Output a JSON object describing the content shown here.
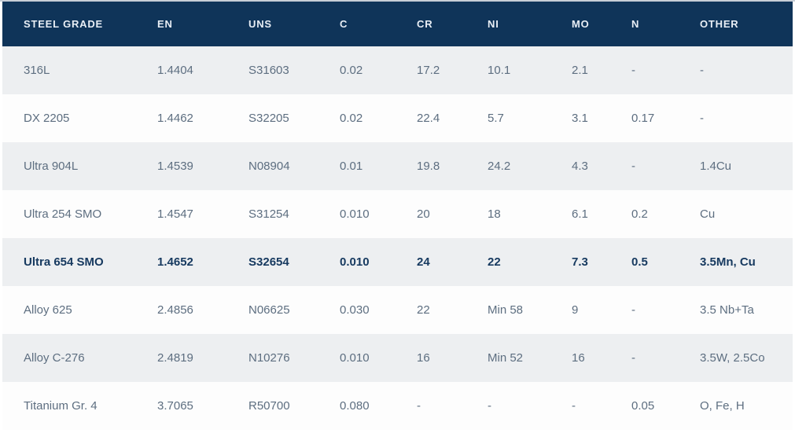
{
  "table": {
    "columns": [
      "STEEL GRADE",
      "EN",
      "UNS",
      "C",
      "CR",
      "NI",
      "MO",
      "N",
      "OTHER"
    ],
    "rows": [
      {
        "cells": [
          "316L",
          "1.4404",
          "S31603",
          "0.02",
          "17.2",
          "10.1",
          "2.1",
          "-",
          "-"
        ],
        "emphasized": false
      },
      {
        "cells": [
          "DX 2205",
          "1.4462",
          "S32205",
          "0.02",
          "22.4",
          "5.7",
          "3.1",
          "0.17",
          "-"
        ],
        "emphasized": false
      },
      {
        "cells": [
          "Ultra 904L",
          "1.4539",
          "N08904",
          "0.01",
          "19.8",
          "24.2",
          "4.3",
          "-",
          "1.4Cu"
        ],
        "emphasized": false
      },
      {
        "cells": [
          "Ultra 254 SMO",
          "1.4547",
          "S31254",
          "0.010",
          "20",
          "18",
          "6.1",
          "0.2",
          "Cu"
        ],
        "emphasized": false
      },
      {
        "cells": [
          "Ultra 654 SMO",
          "1.4652",
          "S32654",
          "0.010",
          "24",
          "22",
          "7.3",
          "0.5",
          "3.5Mn, Cu"
        ],
        "emphasized": true
      },
      {
        "cells": [
          "Alloy 625",
          "2.4856",
          "N06625",
          "0.030",
          "22",
          "Min 58",
          "9",
          "-",
          "3.5 Nb+Ta"
        ],
        "emphasized": false
      },
      {
        "cells": [
          "Alloy C-276",
          "2.4819",
          "N10276",
          "0.010",
          "16",
          "Min 52",
          "16",
          "-",
          "3.5W, 2.5Co"
        ],
        "emphasized": false
      },
      {
        "cells": [
          "Titanium Gr. 4",
          "3.7065",
          "R50700",
          "0.080",
          "-",
          "-",
          "-",
          "0.05",
          "O, Fe, H"
        ],
        "emphasized": false
      }
    ]
  },
  "colors": {
    "header_bg": "#0f3459",
    "header_text": "#e8eef5",
    "row_bg": "#fdfdfd",
    "row_alt_bg": "#edeff1",
    "cell_text": "#5d6e80",
    "emphasis_text": "#173a60"
  },
  "chart_data": {
    "type": "table",
    "title": "",
    "columns": [
      "STEEL GRADE",
      "EN",
      "UNS",
      "C",
      "CR",
      "NI",
      "MO",
      "N",
      "OTHER"
    ],
    "rows": [
      [
        "316L",
        "1.4404",
        "S31603",
        "0.02",
        "17.2",
        "10.1",
        "2.1",
        "-",
        "-"
      ],
      [
        "DX 2205",
        "1.4462",
        "S32205",
        "0.02",
        "22.4",
        "5.7",
        "3.1",
        "0.17",
        "-"
      ],
      [
        "Ultra 904L",
        "1.4539",
        "N08904",
        "0.01",
        "19.8",
        "24.2",
        "4.3",
        "-",
        "1.4Cu"
      ],
      [
        "Ultra 254 SMO",
        "1.4547",
        "S31254",
        "0.010",
        "20",
        "18",
        "6.1",
        "0.2",
        "Cu"
      ],
      [
        "Ultra 654 SMO",
        "1.4652",
        "S32654",
        "0.010",
        "24",
        "22",
        "7.3",
        "0.5",
        "3.5Mn, Cu"
      ],
      [
        "Alloy 625",
        "2.4856",
        "N06625",
        "0.030",
        "22",
        "Min 58",
        "9",
        "-",
        "3.5 Nb+Ta"
      ],
      [
        "Alloy C-276",
        "2.4819",
        "N10276",
        "0.010",
        "16",
        "Min 52",
        "16",
        "-",
        "3.5W, 2.5Co"
      ],
      [
        "Titanium Gr. 4",
        "3.7065",
        "R50700",
        "0.080",
        "-",
        "-",
        "-",
        "0.05",
        "O, Fe, H"
      ]
    ],
    "emphasized_row": "Ultra 654 SMO",
    "layout": "striped rows, dark navy header, left-aligned cells"
  }
}
